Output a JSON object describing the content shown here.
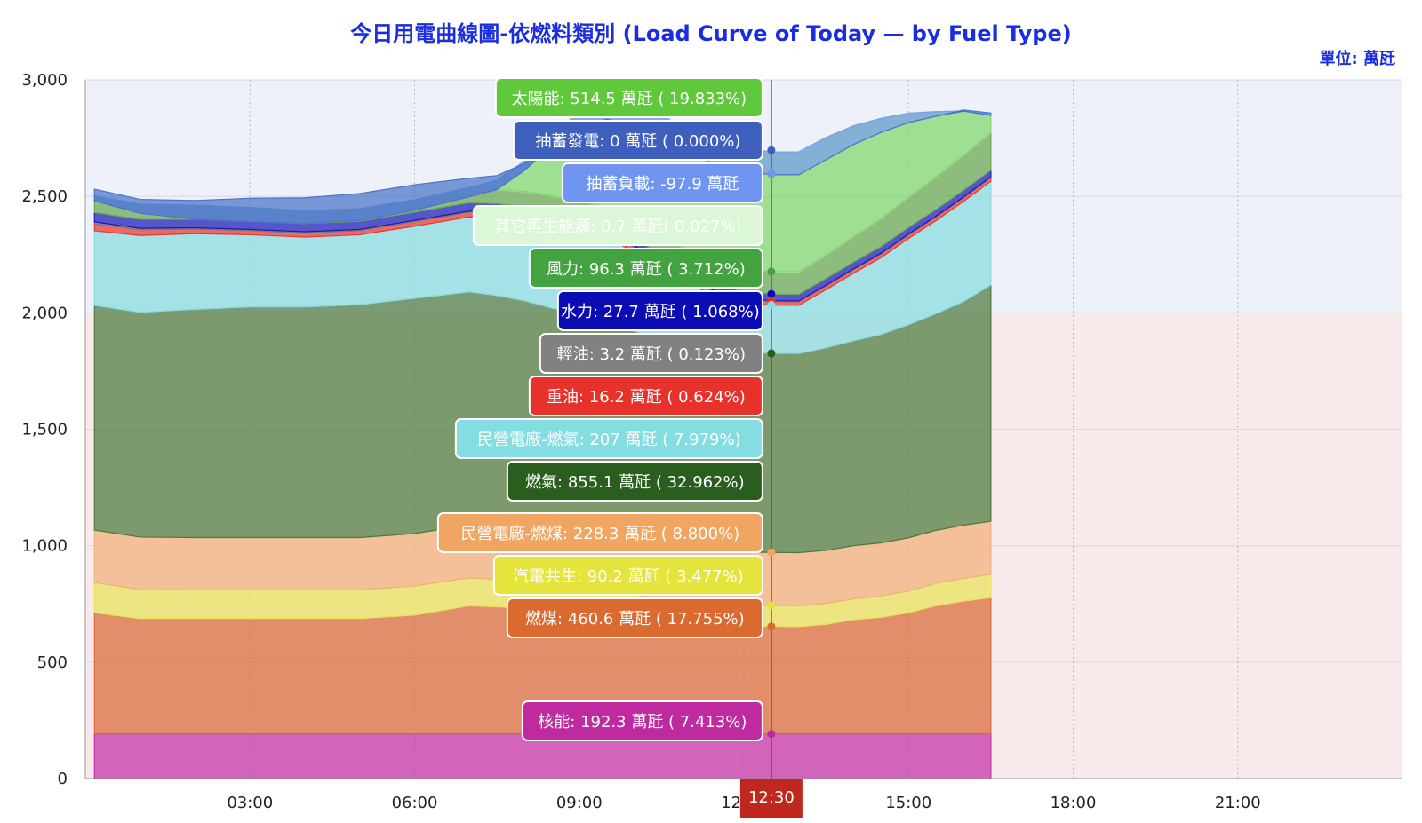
{
  "title": "今日用電曲線圖-依燃料類別 (Load Curve of Today — by Fuel Type)",
  "unit_label": "單位: 萬瓩",
  "cursor_time": "12:30",
  "chart_data": {
    "type": "area",
    "stacked": true,
    "xlabel": "",
    "ylabel": "",
    "xlim": [
      "00:00",
      "24:00"
    ],
    "ylim": [
      0,
      3000
    ],
    "y_ticks": [
      "0",
      "500",
      "1,000",
      "1,500",
      "2,000",
      "2,500",
      "3,000"
    ],
    "x_ticks": [
      "03:00",
      "06:00",
      "09:00",
      "12:00",
      "15:00",
      "18:00",
      "21:00"
    ],
    "grid": true,
    "background_bands": [
      {
        "from": 2000,
        "to": 3000,
        "color": "#eef0fa"
      },
      {
        "from": 0,
        "to": 2000,
        "color": "#f8e9ea"
      }
    ],
    "x": [
      "00:10",
      "01:00",
      "02:00",
      "03:00",
      "04:00",
      "05:00",
      "06:00",
      "07:00",
      "07:30",
      "08:00",
      "08:30",
      "09:00",
      "09:30",
      "10:00",
      "10:30",
      "11:00",
      "11:30",
      "12:00",
      "12:30",
      "13:00",
      "13:30",
      "14:00",
      "14:30",
      "15:00",
      "15:30",
      "16:00",
      "16:30"
    ],
    "series": [
      {
        "name": "核能",
        "color": "#c430a8",
        "values": [
          192,
          192,
          192,
          192,
          192,
          192,
          192,
          192,
          192,
          192,
          192,
          192,
          192,
          192,
          192,
          192,
          192,
          192,
          192,
          192,
          192,
          192,
          192,
          192,
          192,
          192,
          192
        ]
      },
      {
        "name": "燃煤",
        "color": "#d96b3a",
        "values": [
          520,
          495,
          495,
          495,
          495,
          495,
          510,
          550,
          545,
          540,
          530,
          525,
          515,
          500,
          485,
          470,
          465,
          462,
          461,
          460,
          470,
          490,
          500,
          520,
          550,
          570,
          585
        ]
      },
      {
        "name": "汽電共生",
        "color": "#e8e35a",
        "values": [
          130,
          125,
          123,
          123,
          123,
          123,
          125,
          120,
          118,
          113,
          108,
          104,
          100,
          97,
          94,
          92,
          91,
          91,
          90,
          90,
          90,
          90,
          92,
          94,
          96,
          98,
          100
        ]
      },
      {
        "name": "民營電廠-燃煤",
        "color": "#f2b07a",
        "values": [
          225,
          225,
          225,
          225,
          225,
          225,
          225,
          228,
          229,
          232,
          235,
          238,
          240,
          238,
          234,
          230,
          228,
          228,
          228,
          228,
          228,
          228,
          228,
          228,
          228,
          228,
          228
        ]
      },
      {
        "name": "燃氣",
        "color": "#4e7a3e",
        "values": [
          965,
          965,
          980,
          990,
          990,
          1000,
          1010,
          1000,
          990,
          975,
          955,
          935,
          915,
          895,
          880,
          868,
          860,
          856,
          855,
          855,
          870,
          880,
          895,
          915,
          930,
          960,
          1015
        ]
      },
      {
        "name": "民營電廠-燃氣",
        "color": "#88dde0",
        "values": [
          320,
          330,
          325,
          310,
          300,
          300,
          310,
          322,
          335,
          345,
          355,
          360,
          362,
          340,
          310,
          270,
          235,
          215,
          207,
          207,
          250,
          290,
          330,
          370,
          400,
          430,
          445
        ]
      },
      {
        "name": "重油",
        "color": "#e8382e",
        "values": [
          30,
          25,
          20,
          18,
          18,
          18,
          20,
          20,
          20,
          20,
          20,
          20,
          20,
          20,
          20,
          18,
          17,
          16,
          16,
          16,
          16,
          16,
          16,
          16,
          16,
          16,
          16
        ]
      },
      {
        "name": "輕油",
        "color": "#7a7a7a",
        "values": [
          8,
          6,
          5,
          5,
          5,
          5,
          5,
          5,
          5,
          5,
          5,
          5,
          5,
          5,
          4,
          4,
          3,
          3,
          3,
          3,
          3,
          3,
          3,
          3,
          3,
          3,
          3
        ]
      },
      {
        "name": "水力",
        "color": "#1a1ab8",
        "values": [
          40,
          38,
          36,
          35,
          35,
          35,
          35,
          35,
          34,
          33,
          32,
          31,
          30,
          30,
          29,
          29,
          28,
          28,
          28,
          28,
          28,
          28,
          28,
          28,
          28,
          28,
          28
        ]
      },
      {
        "name": "風力",
        "color": "#6aa84f",
        "values": [
          70,
          65,
          60,
          58,
          55,
          53,
          52,
          55,
          60,
          65,
          70,
          72,
          75,
          80,
          85,
          88,
          92,
          95,
          96,
          96,
          100,
          110,
          120,
          130,
          140,
          150,
          160
        ]
      },
      {
        "name": "其它再生能源",
        "color": "#d6f5d0",
        "values": [
          1,
          1,
          1,
          1,
          1,
          1,
          1,
          1,
          1,
          1,
          1,
          1,
          1,
          1,
          1,
          1,
          1,
          1,
          1,
          1,
          1,
          1,
          1,
          1,
          1,
          1,
          1
        ]
      },
      {
        "name": "太陽能",
        "color": "#7fd86a",
        "values": [
          0,
          0,
          0,
          0,
          0,
          0,
          0,
          10,
          40,
          130,
          260,
          380,
          460,
          500,
          515,
          520,
          520,
          518,
          514,
          515,
          505,
          475,
          430,
          360,
          280,
          190,
          75
        ]
      },
      {
        "name": "抽蓄負載",
        "color": "#7a9ef0",
        "values": [
          -20,
          -40,
          -60,
          -60,
          -55,
          -50,
          -45,
          -40,
          -40,
          -40,
          -50,
          -70,
          -85,
          -92,
          -96,
          -97,
          -97,
          -97,
          -98,
          -98,
          -95,
          -80,
          -60,
          -40,
          -20,
          0,
          0
        ]
      },
      {
        "name": "抽蓄發電",
        "color": "#4b74c7",
        "values": [
          50,
          60,
          80,
          100,
          110,
          115,
          110,
          80,
          60,
          30,
          15,
          5,
          2,
          0,
          0,
          0,
          0,
          0,
          0,
          0,
          0,
          0,
          0,
          0,
          0,
          5,
          10
        ]
      }
    ]
  },
  "tooltip": {
    "time": "12:30",
    "items": [
      {
        "label": "太陽能: 514.5 萬瓩 ( 19.833%)",
        "color": "#5fc93b",
        "text_color": "#ffffff",
        "value": 2595
      },
      {
        "label": "抽蓄發電: 0 萬瓩 ( 0.000%)",
        "color": "#3f5fbf",
        "text_color": "#ffffff",
        "value": 2698
      },
      {
        "label": "抽蓄負載: -97.9 萬瓩",
        "color": "#6f95f0",
        "text_color": "#ffffff",
        "value": 2600
      },
      {
        "label": "其它再生能源: 0.7 萬瓩( 0.027%)",
        "color": "#dcf7d8",
        "text_color": "#ffffff",
        "value": 2081
      },
      {
        "label": "風力: 96.3 萬瓩 ( 3.712%)",
        "color": "#43a340",
        "text_color": "#ffffff",
        "value": 2177
      },
      {
        "label": "水力: 27.7 萬瓩 ( 1.068%)",
        "color": "#0c0cb5",
        "text_color": "#ffffff",
        "value": 2081
      },
      {
        "label": "輕油: 3.2 萬瓩 ( 0.123%)",
        "color": "#818181",
        "text_color": "#ffffff",
        "value": 2053
      },
      {
        "label": "重油: 16.2 萬瓩 ( 0.624%)",
        "color": "#e6322b",
        "text_color": "#ffffff",
        "value": 2050
      },
      {
        "label": "民營電廠-燃氣: 207 萬瓩 ( 7.979%)",
        "color": "#84dde0",
        "text_color": "#ffffff",
        "value": 2034
      },
      {
        "label": "燃氣: 855.1 萬瓩 ( 32.962%)",
        "color": "#2a5e1e",
        "text_color": "#ffffff",
        "value": 1826
      },
      {
        "label": "民營電廠-燃煤: 228.3 萬瓩 ( 8.800%)",
        "color": "#f0a662",
        "text_color": "#ffffff",
        "value": 971
      },
      {
        "label": "汽電共生: 90.2 萬瓩 ( 3.477%)",
        "color": "#e4e43c",
        "text_color": "#ffffff",
        "value": 743
      },
      {
        "label": "燃煤: 460.6 萬瓩 ( 17.755%)",
        "color": "#da6a30",
        "text_color": "#ffffff",
        "value": 653
      },
      {
        "label": "核能: 192.3 萬瓩 ( 7.413%)",
        "color": "#c02aa0",
        "text_color": "#ffffff",
        "value": 192
      }
    ]
  }
}
